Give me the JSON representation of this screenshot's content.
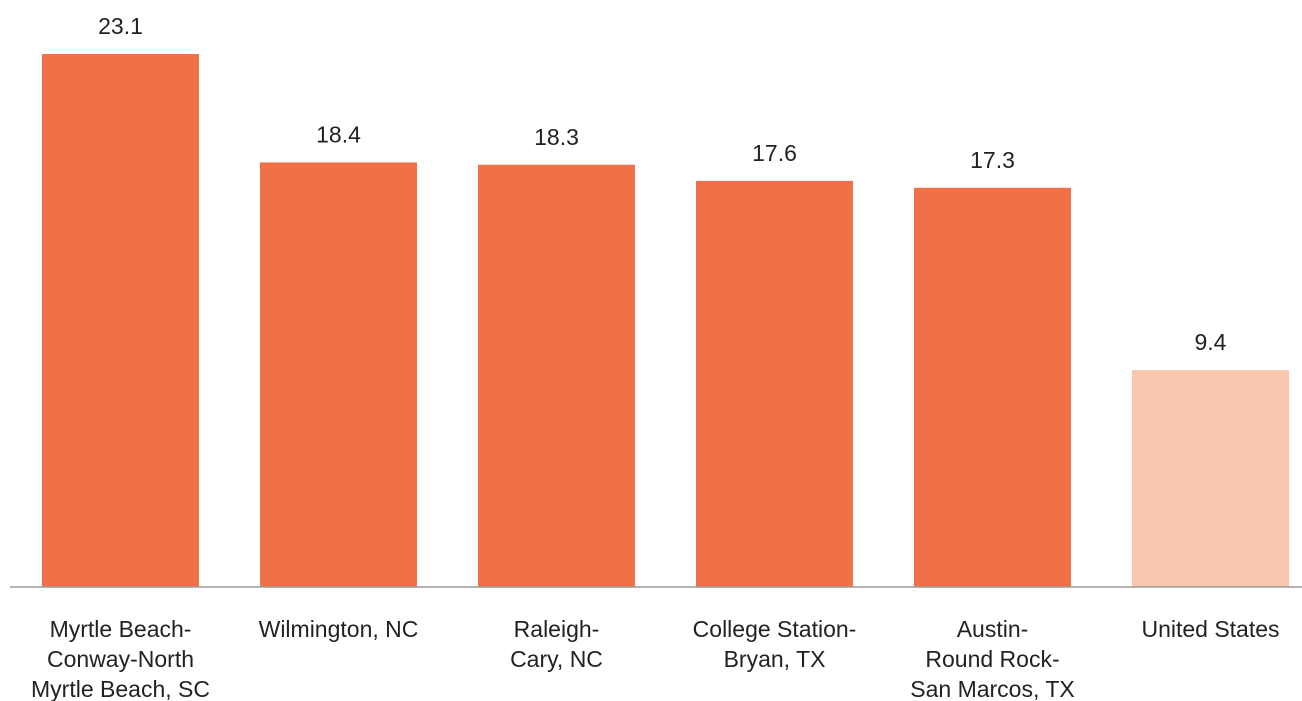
{
  "chart_data": {
    "type": "bar",
    "title": "",
    "xlabel": "",
    "ylabel": "",
    "ylim": [
      0,
      23.1
    ],
    "grid": false,
    "legend": "none",
    "categories": [
      [
        "Myrtle Beach-",
        "Conway-North",
        "Myrtle Beach, SC"
      ],
      [
        "Wilmington, NC"
      ],
      [
        "Raleigh-",
        "Cary, NC"
      ],
      [
        "College Station-",
        "Bryan, TX"
      ],
      [
        "Austin-",
        "Round Rock-",
        "San Marcos, TX"
      ],
      [
        "United States"
      ]
    ],
    "values": [
      23.1,
      18.4,
      18.3,
      17.6,
      17.3,
      9.4
    ],
    "value_labels": [
      "23.1",
      "18.4",
      "18.3",
      "17.6",
      "17.3",
      "9.4"
    ],
    "colors": [
      "#f07047",
      "#f07047",
      "#f07047",
      "#f07047",
      "#f07047",
      "#f9c7ae"
    ]
  }
}
